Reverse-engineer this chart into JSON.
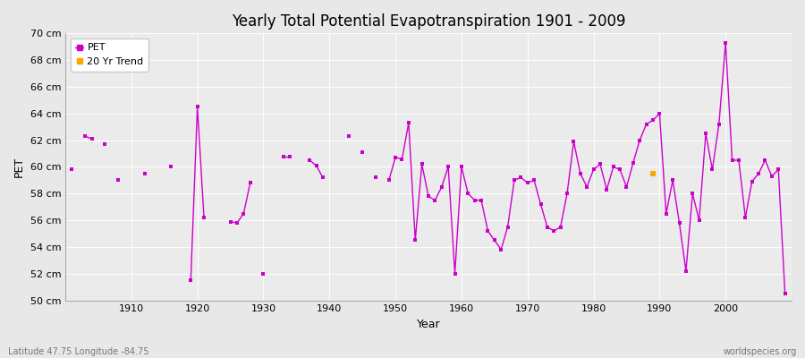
{
  "title": "Yearly Total Potential Evapotranspiration 1901 - 2009",
  "xlabel": "Year",
  "ylabel": "PET",
  "bottom_left_label": "Latitude 47.75 Longitude -84.75",
  "bottom_right_label": "worldspecies.org",
  "ylim": [
    50,
    70
  ],
  "yticks": [
    50,
    52,
    54,
    56,
    58,
    60,
    62,
    64,
    66,
    68,
    70
  ],
  "ytick_labels": [
    "50 cm",
    "52 cm",
    "54 cm",
    "56 cm",
    "58 cm",
    "60 cm",
    "62 cm",
    "64 cm",
    "66 cm",
    "68 cm",
    "70 cm"
  ],
  "xlim": [
    1900,
    2010
  ],
  "xticks": [
    1910,
    1920,
    1930,
    1940,
    1950,
    1960,
    1970,
    1980,
    1990,
    2000
  ],
  "pet_color": "#cc00cc",
  "trend_color": "#ffa500",
  "bg_color": "#e8e8e8",
  "plot_bg_color": "#ebebeb",
  "grid_color": "#ffffff",
  "pet_data": [
    [
      1901,
      59.8
    ],
    [
      1903,
      62.3
    ],
    [
      1904,
      62.1
    ],
    [
      1906,
      61.7
    ],
    [
      1908,
      59.0
    ],
    [
      1912,
      59.5
    ],
    [
      1916,
      60.0
    ],
    [
      1919,
      51.5
    ],
    [
      1920,
      64.5
    ],
    [
      1921,
      56.2
    ],
    [
      1925,
      55.9
    ],
    [
      1926,
      55.8
    ],
    [
      1927,
      56.5
    ],
    [
      1928,
      58.8
    ],
    [
      1930,
      52.0
    ],
    [
      1933,
      60.8
    ],
    [
      1934,
      60.8
    ],
    [
      1937,
      60.5
    ],
    [
      1938,
      60.1
    ],
    [
      1939,
      59.2
    ],
    [
      1943,
      62.3
    ],
    [
      1945,
      61.1
    ],
    [
      1947,
      59.2
    ],
    [
      1949,
      59.0
    ],
    [
      1950,
      60.7
    ],
    [
      1951,
      60.6
    ],
    [
      1952,
      63.3
    ],
    [
      1953,
      54.5
    ],
    [
      1954,
      60.2
    ],
    [
      1955,
      57.8
    ],
    [
      1956,
      57.5
    ],
    [
      1957,
      58.5
    ],
    [
      1958,
      60.0
    ],
    [
      1959,
      52.0
    ],
    [
      1960,
      60.0
    ],
    [
      1961,
      58.0
    ],
    [
      1962,
      57.5
    ],
    [
      1963,
      57.5
    ],
    [
      1964,
      55.2
    ],
    [
      1965,
      54.5
    ],
    [
      1966,
      53.8
    ],
    [
      1967,
      55.5
    ],
    [
      1968,
      59.0
    ],
    [
      1969,
      59.2
    ],
    [
      1970,
      58.8
    ],
    [
      1971,
      59.0
    ],
    [
      1972,
      57.2
    ],
    [
      1973,
      55.5
    ],
    [
      1974,
      55.2
    ],
    [
      1975,
      55.5
    ],
    [
      1976,
      58.0
    ],
    [
      1977,
      61.9
    ],
    [
      1978,
      59.5
    ],
    [
      1979,
      58.5
    ],
    [
      1980,
      59.8
    ],
    [
      1981,
      60.2
    ],
    [
      1982,
      58.3
    ],
    [
      1983,
      60.0
    ],
    [
      1984,
      59.8
    ],
    [
      1985,
      58.5
    ],
    [
      1986,
      60.3
    ],
    [
      1987,
      62.0
    ],
    [
      1988,
      63.2
    ],
    [
      1989,
      63.5
    ],
    [
      1990,
      64.0
    ],
    [
      1991,
      56.5
    ],
    [
      1992,
      59.0
    ],
    [
      1993,
      55.8
    ],
    [
      1994,
      52.2
    ],
    [
      1995,
      58.0
    ],
    [
      1996,
      56.0
    ],
    [
      1997,
      62.5
    ],
    [
      1998,
      59.8
    ],
    [
      1999,
      63.2
    ],
    [
      2000,
      69.3
    ],
    [
      2001,
      60.5
    ],
    [
      2002,
      60.5
    ],
    [
      2003,
      56.2
    ],
    [
      2004,
      58.9
    ],
    [
      2005,
      59.5
    ],
    [
      2006,
      60.5
    ],
    [
      2007,
      59.3
    ],
    [
      2008,
      59.8
    ],
    [
      2009,
      50.5
    ]
  ],
  "trend_year": 1989,
  "trend_value": 59.5
}
